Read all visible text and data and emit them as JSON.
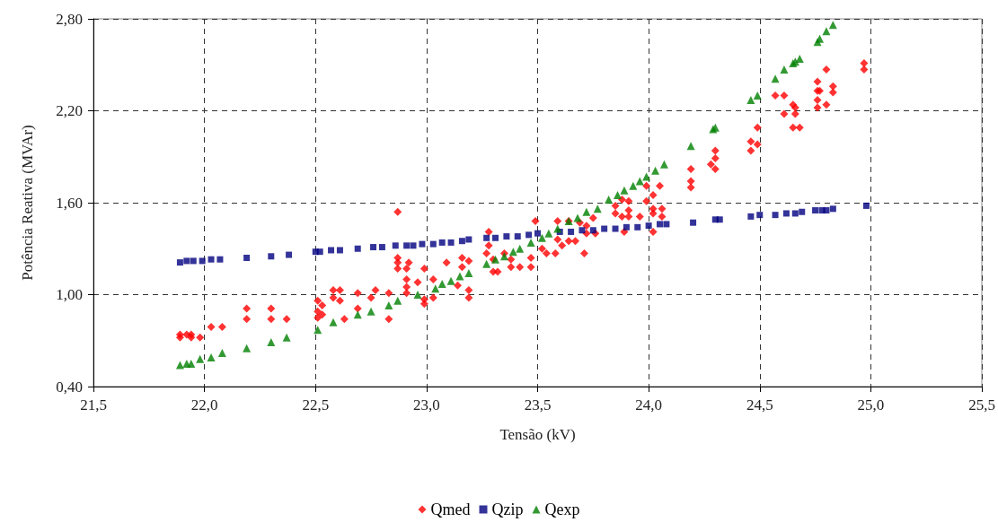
{
  "chart_data": {
    "type": "scatter",
    "xlabel": "Tensão (kV)",
    "ylabel": "Potência Reativa (MVAr)",
    "xlim": [
      21.5,
      25.5
    ],
    "xticks": [
      {
        "value": 21.5,
        "label": "21,5"
      },
      {
        "value": 22.0,
        "label": "22,0"
      },
      {
        "value": 22.5,
        "label": "22,5"
      },
      {
        "value": 23.0,
        "label": "23,0"
      },
      {
        "value": 23.5,
        "label": "23,5"
      },
      {
        "value": 24.0,
        "label": "24,0"
      },
      {
        "value": 24.5,
        "label": "24,5"
      },
      {
        "value": 25.0,
        "label": "25,0"
      },
      {
        "value": 25.5,
        "label": "25,5"
      }
    ],
    "ylim": [
      0.4,
      2.8
    ],
    "yticks": [
      {
        "value": 0.4,
        "label": "0,40"
      },
      {
        "value": 1.0,
        "label": "1,00"
      },
      {
        "value": 1.6,
        "label": "1,60"
      },
      {
        "value": 2.2,
        "label": "2,20"
      },
      {
        "value": 2.8,
        "label": "2,80"
      }
    ],
    "grid": true,
    "legend": "bottom",
    "line_style": "dashed",
    "series": [
      {
        "name": "Qmed",
        "color": "#ff0000",
        "marker": "diamond",
        "x": [
          21.89,
          21.89,
          21.92,
          21.94,
          21.94,
          21.98,
          22.03,
          22.08,
          22.19,
          22.19,
          22.3,
          22.3,
          22.37,
          22.51,
          22.51,
          22.53,
          22.53,
          22.51,
          22.58,
          22.58,
          22.61,
          22.61,
          22.63,
          22.69,
          22.69,
          22.75,
          22.77,
          22.83,
          22.83,
          22.87,
          22.87,
          22.87,
          22.87,
          22.92,
          22.91,
          22.91,
          22.91,
          22.96,
          22.99,
          22.99,
          22.99,
          22.91,
          23.09,
          23.03,
          23.03,
          23.16,
          23.19,
          23.16,
          23.14,
          23.19,
          23.19,
          23.28,
          23.28,
          23.27,
          23.3,
          23.3,
          23.32,
          23.35,
          23.38,
          23.38,
          23.42,
          23.47,
          23.47,
          23.49,
          23.52,
          23.54,
          23.58,
          23.59,
          23.59,
          23.61,
          23.64,
          23.64,
          23.67,
          23.69,
          23.71,
          23.72,
          23.72,
          23.75,
          23.76,
          23.85,
          23.85,
          23.88,
          23.88,
          23.91,
          23.91,
          23.91,
          23.89,
          23.96,
          23.99,
          23.99,
          24.02,
          24.02,
          24.02,
          24.02,
          24.05,
          24.06,
          24.06,
          24.19,
          24.19,
          24.19,
          24.28,
          24.3,
          24.3,
          24.3,
          24.46,
          24.46,
          24.49,
          24.49,
          24.57,
          24.61,
          24.61,
          24.65,
          24.66,
          24.66,
          24.65,
          24.68,
          24.76,
          24.76,
          24.77,
          24.76,
          24.76,
          24.8,
          24.8,
          24.83,
          24.83,
          24.97,
          24.97
        ],
        "values": [
          0.74,
          0.72,
          0.74,
          0.74,
          0.72,
          0.72,
          0.79,
          0.79,
          0.91,
          0.84,
          0.91,
          0.84,
          0.84,
          0.96,
          0.89,
          0.93,
          0.87,
          0.85,
          1.03,
          0.98,
          1.03,
          0.96,
          0.84,
          1.01,
          0.91,
          0.98,
          1.03,
          1.01,
          0.84,
          1.54,
          1.24,
          1.21,
          1.17,
          1.21,
          1.17,
          1.1,
          1.05,
          1.08,
          1.17,
          0.97,
          0.94,
          1.01,
          1.21,
          1.1,
          0.98,
          1.24,
          1.22,
          1.18,
          1.06,
          1.03,
          0.98,
          1.41,
          1.32,
          1.27,
          1.23,
          1.15,
          1.15,
          1.27,
          1.23,
          1.18,
          1.18,
          1.24,
          1.18,
          1.48,
          1.3,
          1.27,
          1.27,
          1.48,
          1.36,
          1.32,
          1.48,
          1.35,
          1.35,
          1.47,
          1.27,
          1.45,
          1.4,
          1.5,
          1.4,
          1.58,
          1.53,
          1.62,
          1.51,
          1.61,
          1.55,
          1.51,
          1.41,
          1.51,
          1.71,
          1.61,
          1.65,
          1.56,
          1.53,
          1.41,
          1.71,
          1.56,
          1.51,
          1.82,
          1.74,
          1.7,
          1.85,
          1.94,
          1.89,
          1.82,
          2.0,
          1.94,
          2.09,
          1.98,
          2.3,
          2.3,
          2.18,
          2.24,
          2.22,
          2.18,
          2.09,
          2.09,
          2.39,
          2.33,
          2.33,
          2.27,
          2.22,
          2.47,
          2.24,
          2.36,
          2.32,
          2.51,
          2.47
        ]
      },
      {
        "name": "Qzip",
        "color": "#000080",
        "marker": "square",
        "x": [
          21.89,
          21.92,
          21.95,
          21.99,
          22.03,
          22.07,
          22.19,
          22.3,
          22.38,
          22.5,
          22.52,
          22.57,
          22.61,
          22.69,
          22.76,
          22.8,
          22.86,
          22.91,
          22.94,
          22.98,
          23.03,
          23.07,
          23.11,
          23.16,
          23.19,
          23.27,
          23.31,
          23.36,
          23.41,
          23.46,
          23.5,
          23.55,
          23.6,
          23.65,
          23.7,
          23.75,
          23.8,
          23.85,
          23.9,
          23.95,
          24.0,
          24.05,
          24.08,
          24.2,
          24.3,
          24.32,
          24.46,
          24.5,
          24.57,
          24.62,
          24.66,
          24.69,
          24.75,
          24.78,
          24.8,
          24.83,
          24.98
        ],
        "values": [
          1.21,
          1.22,
          1.22,
          1.22,
          1.23,
          1.23,
          1.24,
          1.25,
          1.26,
          1.28,
          1.28,
          1.29,
          1.29,
          1.3,
          1.31,
          1.31,
          1.32,
          1.32,
          1.32,
          1.33,
          1.33,
          1.34,
          1.34,
          1.35,
          1.36,
          1.37,
          1.37,
          1.38,
          1.38,
          1.39,
          1.4,
          null,
          1.41,
          1.41,
          1.42,
          1.42,
          1.43,
          1.43,
          1.44,
          1.44,
          1.45,
          1.46,
          1.46,
          1.47,
          1.49,
          1.49,
          1.51,
          1.52,
          1.52,
          1.53,
          1.53,
          1.54,
          1.55,
          1.55,
          1.55,
          1.56,
          1.58
        ]
      },
      {
        "name": "Qexp",
        "color": "#008000",
        "marker": "triangle",
        "x": [
          21.89,
          21.92,
          21.94,
          21.98,
          22.03,
          22.08,
          22.19,
          22.3,
          22.37,
          22.51,
          22.58,
          22.69,
          22.75,
          22.83,
          22.87,
          22.96,
          23.04,
          23.07,
          23.11,
          23.15,
          23.19,
          23.27,
          23.31,
          23.35,
          23.39,
          23.42,
          23.47,
          23.52,
          23.55,
          23.59,
          23.64,
          23.68,
          23.72,
          23.77,
          23.82,
          23.86,
          23.89,
          23.93,
          23.96,
          23.99,
          24.03,
          24.07,
          24.19,
          24.29,
          24.3,
          24.46,
          24.49,
          24.57,
          24.61,
          24.65,
          24.66,
          24.68,
          24.76,
          24.77,
          24.8,
          24.83
        ],
        "values": [
          0.54,
          0.55,
          0.55,
          0.58,
          0.59,
          0.62,
          0.65,
          0.69,
          0.72,
          0.77,
          0.82,
          0.87,
          0.89,
          0.93,
          0.96,
          1.0,
          1.04,
          1.07,
          1.09,
          1.12,
          1.14,
          1.2,
          1.23,
          1.25,
          1.28,
          1.3,
          1.34,
          1.37,
          1.4,
          1.43,
          1.48,
          1.5,
          1.54,
          1.56,
          1.62,
          1.65,
          1.68,
          1.71,
          1.74,
          1.77,
          1.81,
          1.85,
          1.97,
          2.08,
          2.09,
          2.27,
          2.3,
          2.41,
          2.47,
          2.51,
          2.52,
          2.54,
          2.65,
          2.67,
          2.72,
          2.76
        ]
      }
    ]
  }
}
